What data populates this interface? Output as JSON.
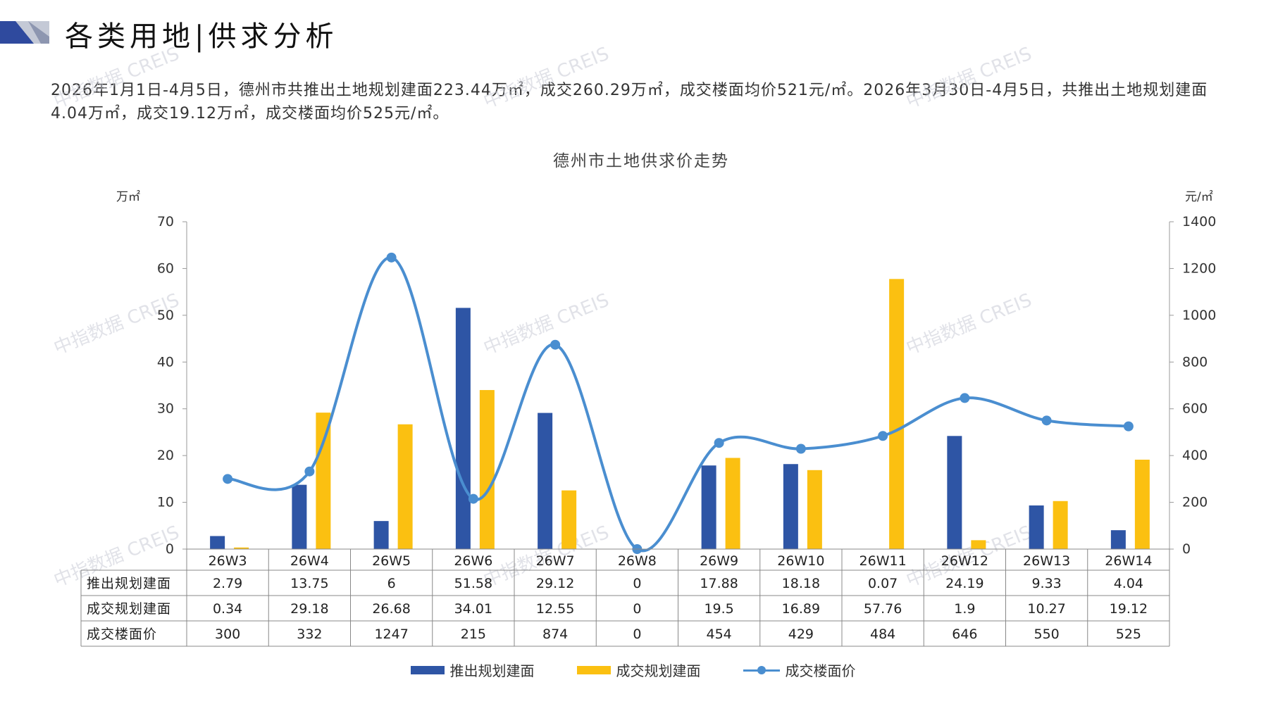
{
  "page": {
    "title": "各类用地|供求分析",
    "summary": "2026年1月1日-4月5日，德州市共推出土地规划建面223.44万㎡，成交260.29万㎡，成交楼面均价521元/㎡。2026年3月30日-4月5日，共推出土地规划建面4.04万㎡，成交19.12万㎡，成交楼面均价525元/㎡。",
    "watermark": "中指数据 CREIS"
  },
  "colors": {
    "supply": "#2e55a5",
    "deal": "#fbc011",
    "price": "#4a8ed0",
    "header_dark": "#2f4a9e",
    "header_light": "#c4c9d6"
  },
  "chart_data": {
    "type": "bar",
    "title": "德州市土地供求价走势",
    "ylabel_left": "万㎡",
    "ylabel_right": "元/㎡",
    "ylim_left": [
      0,
      70
    ],
    "ylim_right": [
      0,
      1400
    ],
    "yticks_left": [
      0,
      10,
      20,
      30,
      40,
      50,
      60,
      70
    ],
    "yticks_right": [
      0,
      200,
      400,
      600,
      800,
      1000,
      1200,
      1400
    ],
    "categories": [
      "26W3",
      "26W4",
      "26W5",
      "26W6",
      "26W7",
      "26W8",
      "26W9",
      "26W10",
      "26W11",
      "26W12",
      "26W13",
      "26W14"
    ],
    "series": [
      {
        "name": "推出规划建面",
        "type": "bar",
        "axis": "left",
        "values": [
          2.79,
          13.75,
          6,
          51.58,
          29.12,
          0,
          17.88,
          18.18,
          0.07,
          24.19,
          9.33,
          4.04
        ],
        "labels": [
          "2.79",
          "13.75",
          "6",
          "51.58",
          "29.12",
          "0",
          "17.88",
          "18.18",
          "0.07",
          "24.19",
          "9.33",
          "4.04"
        ]
      },
      {
        "name": "成交规划建面",
        "type": "bar",
        "axis": "left",
        "values": [
          0.34,
          29.18,
          26.68,
          34.01,
          12.55,
          0,
          19.5,
          16.89,
          57.76,
          1.9,
          10.27,
          19.12
        ],
        "labels": [
          "0.34",
          "29.18",
          "26.68",
          "34.01",
          "12.55",
          "0",
          "19.5",
          "16.89",
          "57.76",
          "1.9",
          "10.27",
          "19.12"
        ]
      },
      {
        "name": "成交楼面价",
        "type": "line",
        "axis": "right",
        "values": [
          300,
          332,
          1247,
          215,
          874,
          0,
          454,
          429,
          484,
          646,
          550,
          525
        ],
        "labels": [
          "300",
          "332",
          "1247",
          "215",
          "874",
          "0",
          "454",
          "429",
          "484",
          "646",
          "550",
          "525"
        ]
      }
    ],
    "legend_position": "bottom",
    "data_table": true
  }
}
